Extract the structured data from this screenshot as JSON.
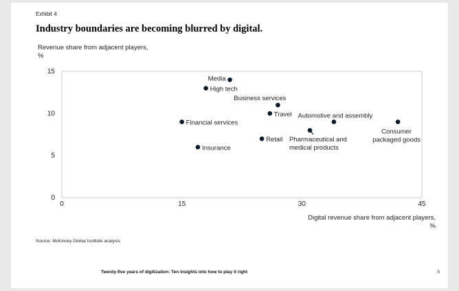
{
  "exhibit_label": "Exhibit 4",
  "title": "Industry boundaries are becoming blurred by digital.",
  "y_axis_label": "Revenue share from adjacent players,",
  "y_axis_unit": "%",
  "x_axis_label": "Digital revenue share from adjacent players,",
  "x_axis_unit": "%",
  "source": "Source: McKinsey Global Institute analysis",
  "footer": "Twenty-five years of digitization: Ten insights into how to play it right",
  "page_number": "5",
  "colors": {
    "point": "#0a1a2e",
    "frame": "#cccccc",
    "text": "#222222"
  },
  "chart_data": {
    "type": "scatter",
    "xlim": [
      0,
      45
    ],
    "ylim": [
      0,
      15
    ],
    "xticks": [
      0,
      15,
      30,
      45
    ],
    "yticks": [
      0,
      5,
      10,
      15
    ],
    "grid": false,
    "points": [
      {
        "label": "Media",
        "x": 21,
        "y": 14
      },
      {
        "label": "High tech",
        "x": 18,
        "y": 13
      },
      {
        "label": "Business services",
        "x": 27,
        "y": 11
      },
      {
        "label": "Travel",
        "x": 26,
        "y": 10
      },
      {
        "label": "Automotive and assembly",
        "x": 34,
        "y": 9
      },
      {
        "label": "Financial services",
        "x": 15,
        "y": 9
      },
      {
        "label": "Consumer packaged goods",
        "x": 42,
        "y": 9
      },
      {
        "label": "Pharmaceutical and medical products",
        "x": 31,
        "y": 8
      },
      {
        "label": "Retail",
        "x": 25,
        "y": 7
      },
      {
        "label": "Insurance",
        "x": 17,
        "y": 6
      }
    ]
  }
}
